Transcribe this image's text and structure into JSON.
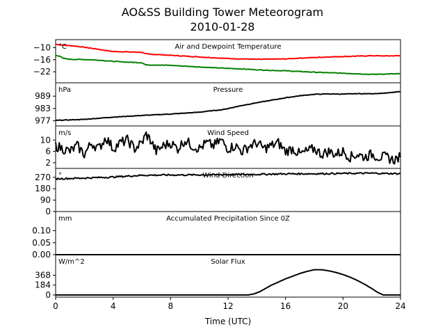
{
  "title": "AO&SS Building Tower Meteorogram",
  "subtitle": "2010-01-28",
  "xlabel": "Time (UTC)",
  "chart_data": [
    {
      "type": "line",
      "panel_title": "Air and Dewpoint Temperature",
      "unit": "°C",
      "ylim": [
        -27.5,
        -6
      ],
      "yticks": [
        -10,
        -16,
        -22
      ],
      "ytick_labels": [
        "−10",
        "−16",
        "−22"
      ],
      "series": [
        {
          "color": "#ff0000",
          "points": [
            [
              0,
              -8.3
            ],
            [
              0.5,
              -8.7
            ],
            [
              1,
              -9.0
            ],
            [
              1.5,
              -9.3
            ],
            [
              2,
              -9.8
            ],
            [
              2.5,
              -10.3
            ],
            [
              3,
              -10.8
            ],
            [
              3.5,
              -11.4
            ],
            [
              4,
              -11.9
            ],
            [
              5,
              -12.1
            ],
            [
              6,
              -12.3
            ],
            [
              6.2,
              -13.0
            ],
            [
              6.5,
              -13.2
            ],
            [
              7,
              -13.4
            ],
            [
              8,
              -13.8
            ],
            [
              9,
              -14.2
            ],
            [
              10,
              -14.6
            ],
            [
              11,
              -15.0
            ],
            [
              12,
              -15.4
            ],
            [
              13,
              -15.6
            ],
            [
              14,
              -15.8
            ],
            [
              15,
              -15.7
            ],
            [
              16,
              -15.6
            ],
            [
              17,
              -15.2
            ],
            [
              18,
              -14.9
            ],
            [
              19,
              -14.6
            ],
            [
              20,
              -14.4
            ],
            [
              21,
              -14.2
            ],
            [
              22,
              -14.0
            ],
            [
              23,
              -14.1
            ],
            [
              24,
              -14.0
            ]
          ]
        },
        {
          "color": "#008000",
          "points": [
            [
              0,
              -13.8
            ],
            [
              0.3,
              -14.2
            ],
            [
              0.5,
              -15.3
            ],
            [
              1,
              -15.8
            ],
            [
              2,
              -15.9
            ],
            [
              3,
              -16.2
            ],
            [
              4,
              -16.8
            ],
            [
              5,
              -17.2
            ],
            [
              6,
              -17.5
            ],
            [
              6.3,
              -18.6
            ],
            [
              7,
              -18.6
            ],
            [
              8,
              -18.8
            ],
            [
              9,
              -19.2
            ],
            [
              10,
              -19.6
            ],
            [
              11,
              -20.0
            ],
            [
              12,
              -20.3
            ],
            [
              13,
              -20.6
            ],
            [
              14,
              -21.0
            ],
            [
              15,
              -21.3
            ],
            [
              16,
              -21.5
            ],
            [
              17,
              -21.9
            ],
            [
              18,
              -22.2
            ],
            [
              19,
              -22.5
            ],
            [
              20,
              -22.7
            ],
            [
              21,
              -23.0
            ],
            [
              22,
              -23.3
            ],
            [
              23,
              -23.1
            ],
            [
              24,
              -23.0
            ]
          ]
        }
      ]
    },
    {
      "type": "line",
      "panel_title": "Pressure",
      "unit": "hPa",
      "ylim": [
        974.5,
        995.5
      ],
      "yticks": [
        989,
        983,
        977
      ],
      "ytick_labels": [
        "989",
        "983",
        "977"
      ],
      "series": [
        {
          "color": "#000000",
          "points": [
            [
              0,
              977.2
            ],
            [
              2,
              977.7
            ],
            [
              4,
              978.8
            ],
            [
              6,
              979.6
            ],
            [
              8,
              980.3
            ],
            [
              10,
              981.2
            ],
            [
              11,
              982.0
            ],
            [
              11.6,
              982.4
            ],
            [
              12,
              983.0
            ],
            [
              13,
              984.5
            ],
            [
              14,
              985.8
            ],
            [
              15,
              987.0
            ],
            [
              16,
              988.2
            ],
            [
              17,
              989.2
            ],
            [
              18,
              989.9
            ],
            [
              19,
              990.1
            ],
            [
              20,
              990.0
            ],
            [
              21,
              990.2
            ],
            [
              22,
              990.2
            ],
            [
              23,
              990.5
            ],
            [
              24,
              991.2
            ]
          ]
        }
      ]
    },
    {
      "type": "line",
      "panel_title": "Wind Speed",
      "unit": "m/s",
      "ylim": [
        0,
        15
      ],
      "yticks": [
        10,
        6,
        2
      ],
      "ytick_labels": [
        "10",
        "6",
        "2"
      ],
      "series": [
        {
          "color": "#000000",
          "points": [
            [
              0,
              8
            ],
            [
              0.5,
              7
            ],
            [
              1,
              6
            ],
            [
              1.5,
              8
            ],
            [
              2,
              5
            ],
            [
              2.5,
              9
            ],
            [
              3,
              7
            ],
            [
              3.5,
              11
            ],
            [
              4,
              7
            ],
            [
              4.5,
              9
            ],
            [
              5,
              10
            ],
            [
              5.5,
              7
            ],
            [
              6,
              9
            ],
            [
              6.3,
              12
            ],
            [
              6.6,
              10
            ],
            [
              7,
              6
            ],
            [
              7.5,
              8
            ],
            [
              8,
              9
            ],
            [
              8.5,
              7
            ],
            [
              9,
              10
            ],
            [
              9.5,
              8
            ],
            [
              10,
              7
            ],
            [
              10.5,
              9
            ],
            [
              11,
              8
            ],
            [
              11.5,
              10
            ],
            [
              12,
              7
            ],
            [
              12.5,
              8
            ],
            [
              13,
              6
            ],
            [
              13.5,
              8
            ],
            [
              14,
              9
            ],
            [
              14.5,
              7
            ],
            [
              15,
              8
            ],
            [
              15.5,
              9
            ],
            [
              16,
              6
            ],
            [
              16.5,
              7
            ],
            [
              17,
              5
            ],
            [
              17.5,
              6
            ],
            [
              18,
              7
            ],
            [
              18.5,
              5
            ],
            [
              19,
              6
            ],
            [
              19.5,
              5
            ],
            [
              20,
              6
            ],
            [
              20.5,
              4
            ],
            [
              21,
              5
            ],
            [
              21.5,
              4
            ],
            [
              22,
              5
            ],
            [
              22.5,
              4
            ],
            [
              23,
              4
            ],
            [
              23.5,
              3
            ],
            [
              24,
              4
            ]
          ]
        }
      ]
    },
    {
      "type": "line",
      "panel_title": "Wind Direction",
      "unit": "°",
      "ylim": [
        0,
        340
      ],
      "yticks": [
        270,
        180,
        90,
        0
      ],
      "ytick_labels": [
        "270",
        "180",
        "90",
        "0"
      ],
      "series": [
        {
          "color": "#000000",
          "points": [
            [
              0,
              258
            ],
            [
              2,
              264
            ],
            [
              4,
              272
            ],
            [
              6,
              286
            ],
            [
              8,
              288
            ],
            [
              10,
              289
            ],
            [
              12,
              291
            ],
            [
              14,
              293
            ],
            [
              16,
              297
            ],
            [
              18,
              298
            ],
            [
              20,
              300
            ],
            [
              22,
              302
            ],
            [
              24,
              298
            ]
          ]
        }
      ]
    },
    {
      "type": "line",
      "panel_title": "Accumulated Precipitation Since 0Z",
      "unit": "mm",
      "ylim": [
        0,
        0.18
      ],
      "yticks": [
        0.1,
        0.05,
        0.0
      ],
      "ytick_labels": [
        "0.10",
        "0.05",
        "0.00"
      ],
      "series": [
        {
          "color": "#000000",
          "points": [
            [
              0,
              0
            ],
            [
              24,
              0
            ]
          ]
        }
      ]
    },
    {
      "type": "line",
      "panel_title": "Solar Flux",
      "unit": "W/m^2",
      "ylim": [
        -40,
        750
      ],
      "yticks": [
        368,
        184,
        0
      ],
      "ytick_labels": [
        "368",
        "184",
        "0"
      ],
      "series": [
        {
          "color": "#000000",
          "points": [
            [
              0,
              0
            ],
            [
              13.4,
              0
            ],
            [
              13.8,
              20
            ],
            [
              14.2,
              60
            ],
            [
              14.6,
              120
            ],
            [
              15,
              180
            ],
            [
              15.5,
              240
            ],
            [
              16,
              300
            ],
            [
              16.5,
              350
            ],
            [
              17,
              400
            ],
            [
              17.5,
              440
            ],
            [
              18,
              470
            ],
            [
              18.5,
              470
            ],
            [
              19,
              450
            ],
            [
              19.5,
              420
            ],
            [
              20,
              380
            ],
            [
              20.5,
              330
            ],
            [
              21,
              270
            ],
            [
              21.5,
              200
            ],
            [
              22,
              120
            ],
            [
              22.4,
              50
            ],
            [
              22.8,
              0
            ],
            [
              24,
              0
            ]
          ]
        }
      ]
    }
  ],
  "xaxis": {
    "xlim": [
      0,
      24
    ],
    "ticks": [
      0,
      4,
      8,
      12,
      16,
      20,
      24
    ],
    "tick_labels": [
      "0",
      "4",
      "8",
      "12",
      "16",
      "20",
      "24"
    ]
  }
}
